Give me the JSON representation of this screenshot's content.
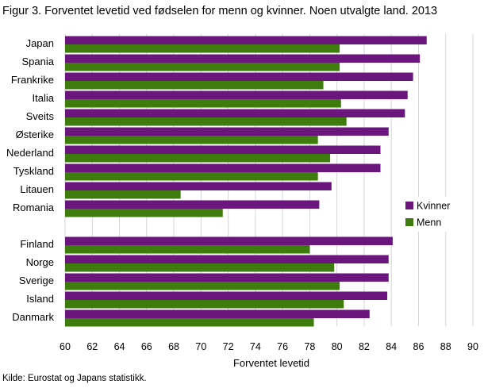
{
  "figure": {
    "title": "Figur 3. Forventet levetid ved fødselen  for menn og kvinner. Noen utvalgte land. 2013",
    "source": "Kilde: Eurostat og Japans statistikk."
  },
  "chart_data": {
    "type": "bar",
    "orientation": "horizontal",
    "title": "Figur 3. Forventet levetid ved fødselen  for menn og kvinner. Noen utvalgte land. 2013",
    "xlabel": "Forventet levetid",
    "ylabel": "",
    "xlim": [
      60,
      90
    ],
    "xticks": [
      "60",
      "62",
      "64",
      "66",
      "68",
      "70",
      "72",
      "74",
      "76",
      "78",
      "80",
      "82",
      "84",
      "86",
      "88",
      "90"
    ],
    "grid": "vertical",
    "legend_position": "right",
    "categories": [
      "Japan",
      "Spania",
      "Frankrike",
      "Italia",
      "Sveits",
      "Østerike",
      "Nederland",
      "Tyskland",
      "Litauen",
      "Romania",
      "",
      "Finland",
      "Norge",
      "Sverige",
      "Island",
      "Danmark"
    ],
    "series": [
      {
        "name": "Kvinner",
        "color": "#6b167d",
        "values": [
          86.6,
          86.1,
          85.6,
          85.2,
          85.0,
          83.8,
          83.2,
          83.2,
          79.6,
          78.7,
          null,
          84.1,
          83.8,
          83.8,
          83.7,
          82.4
        ]
      },
      {
        "name": "Menn",
        "color": "#3e7c0e",
        "values": [
          80.2,
          80.2,
          79.0,
          80.3,
          80.7,
          78.6,
          79.5,
          78.6,
          68.5,
          71.6,
          null,
          78.0,
          79.8,
          80.2,
          80.5,
          78.3
        ]
      }
    ]
  }
}
